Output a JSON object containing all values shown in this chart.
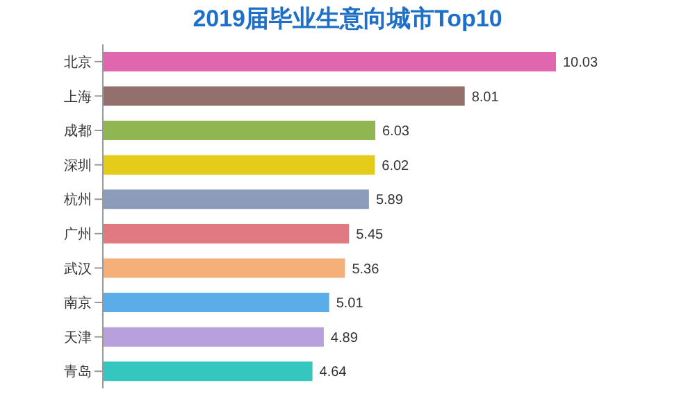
{
  "chart_data": {
    "type": "bar",
    "orientation": "horizontal",
    "title": "2019届毕业生意向城市Top10",
    "categories": [
      "北京",
      "上海",
      "成都",
      "深圳",
      "杭州",
      "广州",
      "武汉",
      "南京",
      "天津",
      "青岛"
    ],
    "values": [
      10.03,
      8.01,
      6.03,
      6.02,
      5.89,
      5.45,
      5.36,
      5.01,
      4.89,
      4.64
    ],
    "colors": [
      "#e066b0",
      "#94706c",
      "#8fb650",
      "#e5cc1a",
      "#8b9dbb",
      "#e07a80",
      "#f5b07a",
      "#5aade8",
      "#b8a0dc",
      "#36c6c0"
    ],
    "data_labels": true
  }
}
